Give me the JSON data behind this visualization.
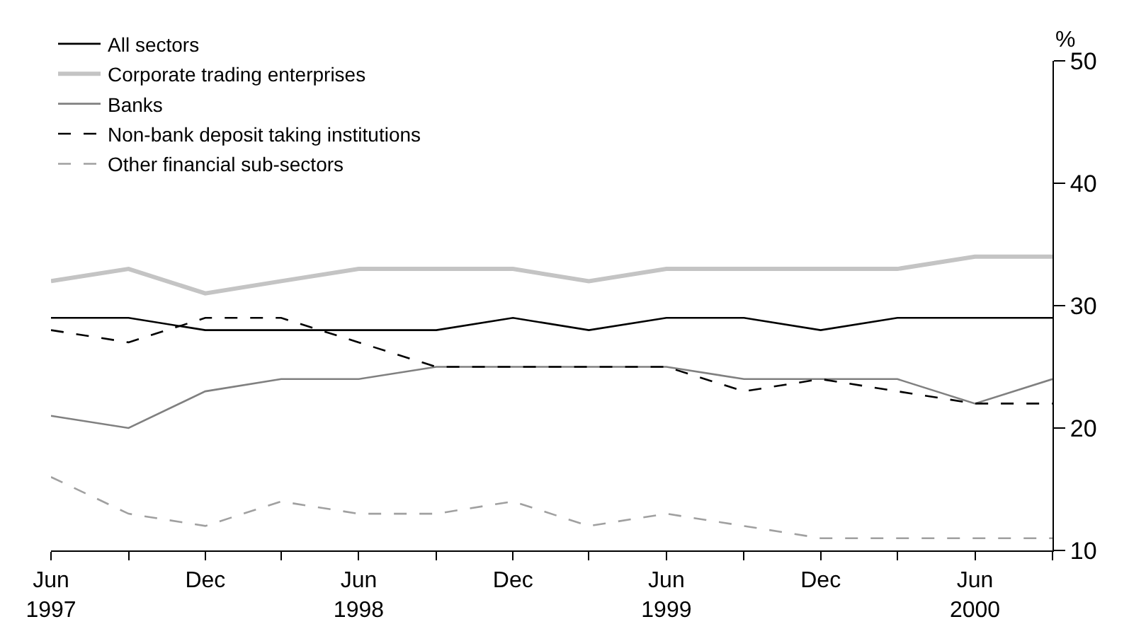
{
  "chart_data": {
    "type": "line",
    "ylabel": "%",
    "x": [
      "1997-06",
      "1997-09",
      "1997-12",
      "1998-03",
      "1998-06",
      "1998-09",
      "1998-12",
      "1999-03",
      "1999-06",
      "1999-09",
      "1999-12",
      "2000-03",
      "2000-06",
      "2000-09"
    ],
    "series": [
      {
        "name": "All sectors",
        "color": "#000000",
        "line_style": "solid",
        "values": [
          29,
          29,
          28,
          28,
          28,
          28,
          29,
          28,
          29,
          29,
          28,
          29,
          29,
          29
        ]
      },
      {
        "name": "Corporate trading enterprises",
        "color": "#c4c4c4",
        "line_style": "solid",
        "values": [
          32,
          33,
          31,
          32,
          33,
          33,
          33,
          32,
          33,
          33,
          33,
          33,
          34,
          34
        ]
      },
      {
        "name": "Banks",
        "color": "#808080",
        "line_style": "solid",
        "values": [
          21,
          20,
          23,
          24,
          24,
          25,
          25,
          25,
          25,
          24,
          24,
          24,
          22,
          24
        ]
      },
      {
        "name": "Non-bank deposit taking institutions",
        "color": "#000000",
        "line_style": "dashed",
        "values": [
          28,
          27,
          29,
          29,
          27,
          25,
          25,
          25,
          25,
          23,
          24,
          23,
          22,
          22
        ]
      },
      {
        "name": "Other financial sub-sectors",
        "color": "#a0a0a0",
        "line_style": "dashed",
        "values": [
          16,
          13,
          12,
          14,
          13,
          13,
          14,
          12,
          13,
          12,
          11,
          11,
          11,
          11
        ]
      }
    ],
    "xlim": [
      "1997-06",
      "2000-09"
    ],
    "xticks": [
      {
        "value": "1997-06",
        "label": "Jun\n1997"
      },
      {
        "value": "1997-09",
        "label": null
      },
      {
        "value": "1997-12",
        "label": "Dec"
      },
      {
        "value": "1998-03",
        "label": null
      },
      {
        "value": "1998-06",
        "label": "Jun\n1998"
      },
      {
        "value": "1998-09",
        "label": null
      },
      {
        "value": "1998-12",
        "label": "Dec"
      },
      {
        "value": "1999-03",
        "label": null
      },
      {
        "value": "1999-06",
        "label": "Jun\n1999"
      },
      {
        "value": "1999-09",
        "label": null
      },
      {
        "value": "1999-12",
        "label": "Dec"
      },
      {
        "value": "2000-03",
        "label": null
      },
      {
        "value": "2000-06",
        "label": "Jun\n2000"
      },
      {
        "value": "2000-09",
        "label": null
      }
    ],
    "ylim": [
      10,
      50
    ],
    "yticks": [
      10,
      20,
      30,
      40,
      50
    ],
    "legend": "top left",
    "marker": "none"
  }
}
